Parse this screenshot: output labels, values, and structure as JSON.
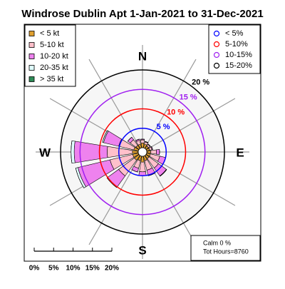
{
  "chart_data": {
    "type": "windrose",
    "title": "Windrose  Dublin Apt 1-Jan-2021 to 31-Dec-2021",
    "x": [
      0,
      22.5,
      45,
      67.5,
      90,
      112.5,
      135,
      157.5,
      180,
      202.5,
      225,
      247.5,
      270,
      292.5,
      315,
      337.5
    ],
    "series": [
      {
        "name": "< 5  kt",
        "color": "#e0a030",
        "values": [
          1.2,
          1.0,
          0.8,
          0.8,
          1.0,
          1.0,
          1.0,
          1.2,
          1.5,
          1.2,
          1.5,
          1.5,
          1.5,
          1.2,
          1.0,
          1.0
        ]
      },
      {
        "name": "5-10 kt",
        "color": "#ffc0cb",
        "values": [
          0.8,
          0.6,
          0.5,
          0.6,
          1.5,
          2.5,
          3.0,
          2.5,
          2.5,
          2.0,
          5.0,
          6.0,
          6.5,
          4.0,
          1.8,
          1.0
        ]
      },
      {
        "name": "10-20 kt",
        "color": "#ee82ee",
        "values": [
          0.2,
          0.1,
          0.1,
          0.2,
          0.8,
          1.5,
          2.5,
          1.5,
          1.0,
          1.0,
          3.5,
          8.5,
          8.5,
          4.0,
          0.8,
          0.3
        ]
      },
      {
        "name": "20-35 kt",
        "color": "#e0ffff",
        "values": [
          0,
          0,
          0,
          0,
          0,
          0,
          0.1,
          0,
          0,
          0,
          0.2,
          0.6,
          0.8,
          0.3,
          0,
          0
        ]
      },
      {
        "name": "> 35 kt",
        "color": "#2e8b57",
        "values": [
          0,
          0,
          0,
          0,
          0,
          0,
          0,
          0,
          0,
          0,
          0,
          0,
          0,
          0,
          0,
          0
        ]
      }
    ],
    "rings": [
      {
        "value": 5,
        "label": "5 %",
        "legend": "< 5%",
        "color": "#0000ff"
      },
      {
        "value": 10,
        "label": "10 %",
        "legend": "5-10%",
        "color": "#ff0000"
      },
      {
        "value": 15,
        "label": "15 %",
        "legend": "10-15%",
        "color": "#a020f0"
      },
      {
        "value": 20,
        "label": "20 %",
        "legend": "15-20%",
        "color": "#000000"
      }
    ],
    "compass": [
      "N",
      "E",
      "S",
      "W"
    ],
    "scale_ticks": [
      {
        "value": 0,
        "label": "0%"
      },
      {
        "value": 5,
        "label": "5%"
      },
      {
        "value": 10,
        "label": "10%"
      },
      {
        "value": 15,
        "label": "15%"
      },
      {
        "value": 20,
        "label": "20%"
      }
    ],
    "calm_text": "Calm 0 %",
    "total_text": "Tot Hours=8760"
  }
}
